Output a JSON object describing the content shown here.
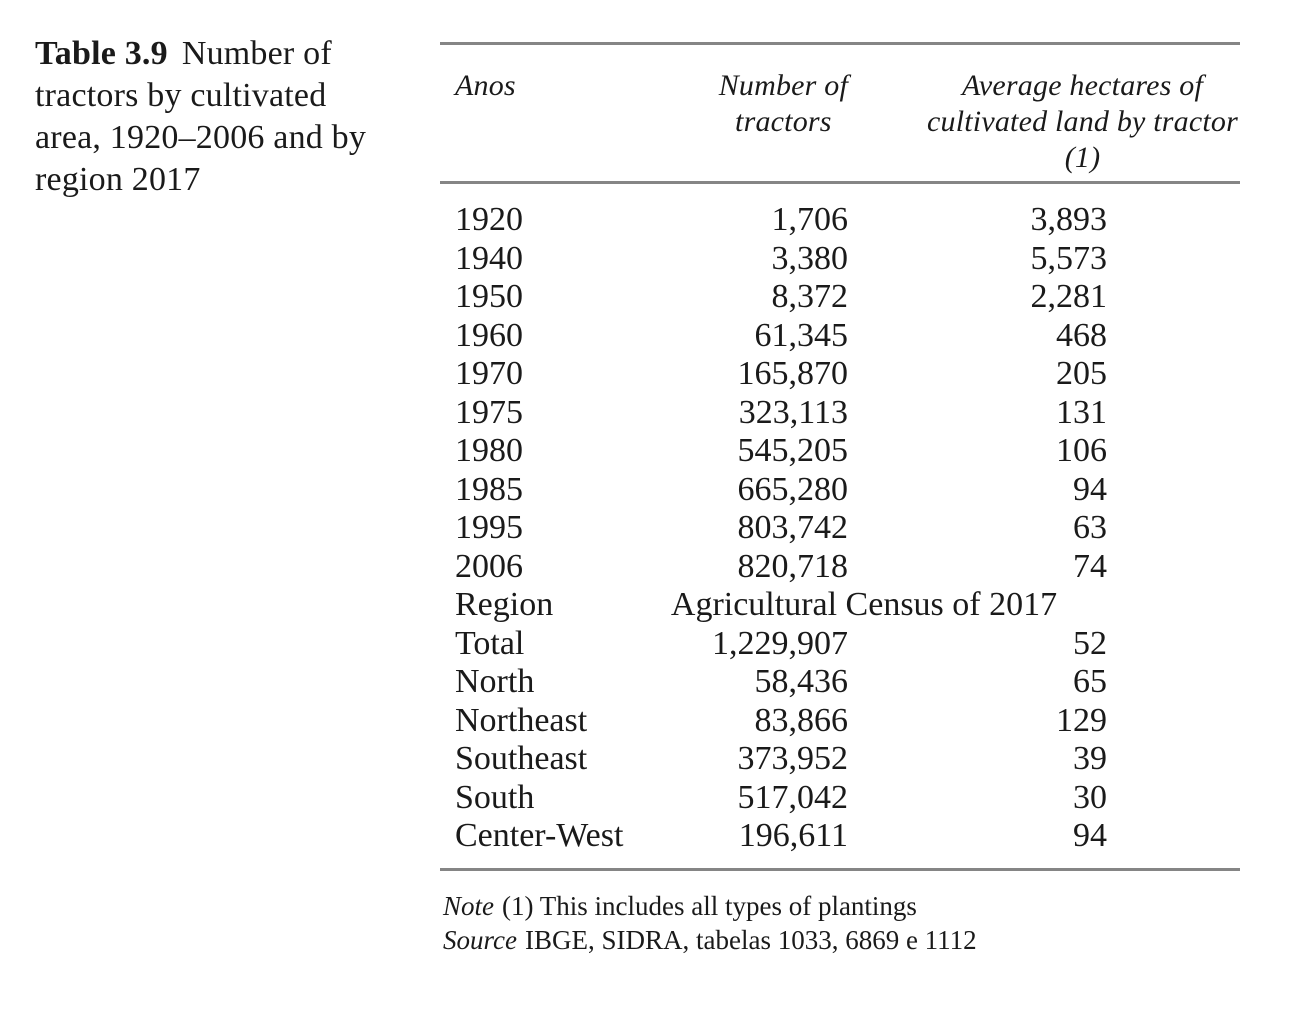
{
  "caption": {
    "label": "Table 3.9",
    "line1": "Number of",
    "line2": "tractors by cultivated",
    "line3": "area, 1920–2006 and by",
    "line4": "region 2017"
  },
  "table": {
    "headers": {
      "col1": "Anos",
      "col2_line1": "Number of",
      "col2_line2": "tractors",
      "col3_line1": "Average hectares of",
      "col3_line2": "cultivated land by tractor",
      "col3_line3": "(1)"
    },
    "rows": [
      {
        "label": "1920",
        "tractors": "1,706",
        "hectares": "3,893"
      },
      {
        "label": "1940",
        "tractors": "3,380",
        "hectares": "5,573"
      },
      {
        "label": "1950",
        "tractors": "8,372",
        "hectares": "2,281"
      },
      {
        "label": "1960",
        "tractors": "61,345",
        "hectares": "468"
      },
      {
        "label": "1970",
        "tractors": "165,870",
        "hectares": "205"
      },
      {
        "label": "1975",
        "tractors": "323,113",
        "hectares": "131"
      },
      {
        "label": "1980",
        "tractors": "545,205",
        "hectares": "106"
      },
      {
        "label": "1985",
        "tractors": "665,280",
        "hectares": "94"
      },
      {
        "label": "1995",
        "tractors": "803,742",
        "hectares": "63"
      },
      {
        "label": "2006",
        "tractors": "820,718",
        "hectares": "74"
      },
      {
        "label": "Region",
        "span": "Agricultural Census of 2017"
      },
      {
        "label": "Total",
        "tractors": "1,229,907",
        "hectares": "52"
      },
      {
        "label": "North",
        "tractors": "58,436",
        "hectares": "65"
      },
      {
        "label": "Northeast",
        "tractors": "83,866",
        "hectares": "129"
      },
      {
        "label": "Southeast",
        "tractors": "373,952",
        "hectares": "39"
      },
      {
        "label": "South",
        "tractors": "517,042",
        "hectares": "30"
      },
      {
        "label": "Center-West",
        "tractors": "196,611",
        "hectares": "94"
      }
    ]
  },
  "notes": {
    "note_prefix": "Note",
    "note_text": "(1) This includes all types of plantings",
    "source_prefix": "Source",
    "source_text": "IBGE, SIDRA, tabelas 1033, 6869 e 1112"
  },
  "colors": {
    "text": "#1a1a1a",
    "rule": "#858585",
    "background": "#ffffff"
  }
}
